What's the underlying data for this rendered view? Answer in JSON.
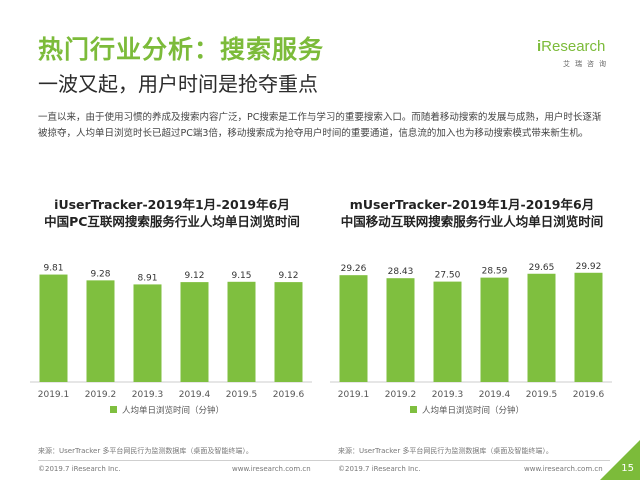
{
  "header": {
    "title": "热门行业分析：搜索服务",
    "subtitle": "一波又起，用户时间是抢夺重点"
  },
  "logo": {
    "i": "i",
    "word": "Research",
    "sub": "艾瑞咨询"
  },
  "body_text": "一直以来，由于使用习惯的养成及搜索内容广泛，PC搜索是工作与学习的重要搜索入口。而随着移动搜索的发展与成熟，用户时长逐渐被掠夺，人均单日浏览时长已超过PC端3倍，移动搜索成为抢夺用户时间的重要通道，信息流的加入也为移动搜索模式带来新生机。",
  "chart_data": [
    {
      "type": "bar",
      "title_line1": "iUserTracker-2019年1月-2019年6月",
      "title_line2": "中国PC互联网搜索服务行业人均单日浏览时间",
      "categories": [
        "2019.1",
        "2019.2",
        "2019.3",
        "2019.4",
        "2019.5",
        "2019.6"
      ],
      "series": [
        {
          "name": "人均单日浏览时间（分钟）",
          "values": [
            9.81,
            9.28,
            8.91,
            9.12,
            9.15,
            9.12
          ]
        }
      ],
      "labels": [
        "9.81",
        "9.28",
        "8.91",
        "9.12",
        "9.15",
        "9.12"
      ],
      "ylim": [
        0,
        10.5
      ],
      "legend_position": "bottom"
    },
    {
      "type": "bar",
      "title_line1": "mUserTracker-2019年1月-2019年6月",
      "title_line2": "中国移动互联网搜索服务行业人均单日浏览时间",
      "categories": [
        "2019.1",
        "2019.2",
        "2019.3",
        "2019.4",
        "2019.5",
        "2019.6"
      ],
      "series": [
        {
          "name": "人均单日浏览时间（分钟）",
          "values": [
            29.26,
            28.43,
            27.5,
            28.59,
            29.65,
            29.92
          ]
        }
      ],
      "labels": [
        "29.26",
        "28.43",
        "27.50",
        "28.59",
        "29.65",
        "29.92"
      ],
      "ylim": [
        0,
        31.5
      ],
      "legend_position": "bottom"
    }
  ],
  "sources": {
    "left": "来源：UserTracker 多平台网民行为监测数据库（桌面及智能终端）。",
    "right": "来源：UserTracker 多平台网民行为监测数据库（桌面及智能终端）。"
  },
  "footer": {
    "copyright": "©2019.7 iResearch Inc.",
    "url": "www.iresearch.com.cn",
    "page_number": "15"
  },
  "colors": {
    "accent": "#7cbb3a",
    "bar": "#7fbf3f",
    "text_dark": "#2b2b2b"
  }
}
